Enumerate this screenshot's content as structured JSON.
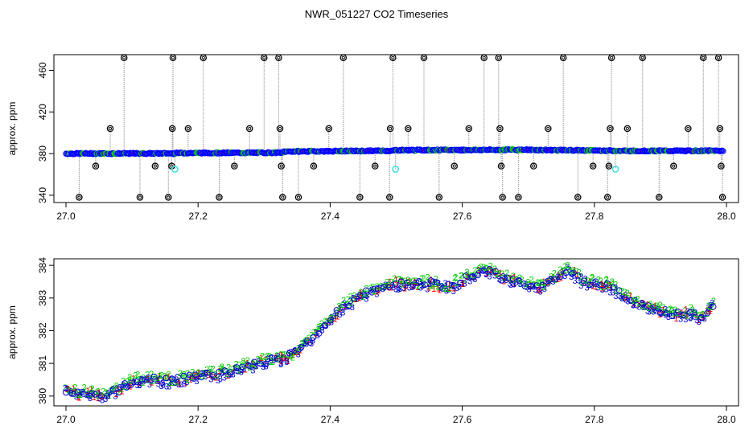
{
  "figure": {
    "title": "NWR_051227  CO2 Timeseries"
  },
  "colors": {
    "outlier": "#000000",
    "main_points": "#0000ff",
    "flag_cyan": "#40e0e0",
    "connector": "#999999",
    "series_1": "#ff0000",
    "series_2": "#00cc00",
    "series_3": "#0000cc"
  },
  "chart_data": [
    {
      "type": "scatter",
      "ylabel": "approx. ppm",
      "xlim": [
        27.0,
        28.0
      ],
      "ylim": [
        333,
        475
      ],
      "x_ticks": [
        27.0,
        27.2,
        27.4,
        27.6,
        27.8,
        28.0
      ],
      "x_tick_labels": [
        "27.0",
        "27.2",
        "27.4",
        "27.6",
        "27.8",
        "28.0"
      ],
      "y_ticks": [
        340,
        380,
        420,
        460
      ],
      "y_tick_labels": [
        "340",
        "380",
        "420",
        "460"
      ],
      "baseline_segments": [
        {
          "x": [
            27.0,
            27.165
          ],
          "y": [
            380.0,
            380.2
          ]
        },
        {
          "x": [
            27.165,
            27.33
          ],
          "y": [
            380.5,
            380.9
          ]
        },
        {
          "x": [
            27.33,
            27.497
          ],
          "y": [
            382.0,
            382.8
          ]
        },
        {
          "x": [
            27.497,
            27.664
          ],
          "y": [
            383.3,
            383.6
          ]
        },
        {
          "x": [
            27.664,
            27.831
          ],
          "y": [
            383.8,
            382.8
          ]
        },
        {
          "x": [
            27.831,
            27.995
          ],
          "y": [
            382.6,
            382.7
          ]
        }
      ],
      "outliers": [
        {
          "x": 27.02,
          "y": 338
        },
        {
          "x": 27.045,
          "y": 368
        },
        {
          "x": 27.067,
          "y": 404
        },
        {
          "x": 27.088,
          "y": 472
        },
        {
          "x": 27.112,
          "y": 338
        },
        {
          "x": 27.135,
          "y": 368
        },
        {
          "x": 27.155,
          "y": 338
        },
        {
          "x": 27.16,
          "y": 368
        },
        {
          "x": 27.161,
          "y": 404
        },
        {
          "x": 27.162,
          "y": 472
        },
        {
          "x": 27.185,
          "y": 404
        },
        {
          "x": 27.208,
          "y": 472
        },
        {
          "x": 27.232,
          "y": 338
        },
        {
          "x": 27.255,
          "y": 368
        },
        {
          "x": 27.278,
          "y": 404
        },
        {
          "x": 27.3,
          "y": 472
        },
        {
          "x": 27.322,
          "y": 472
        },
        {
          "x": 27.324,
          "y": 404
        },
        {
          "x": 27.326,
          "y": 368
        },
        {
          "x": 27.328,
          "y": 338
        },
        {
          "x": 27.352,
          "y": 338
        },
        {
          "x": 27.375,
          "y": 368
        },
        {
          "x": 27.398,
          "y": 404
        },
        {
          "x": 27.42,
          "y": 472
        },
        {
          "x": 27.445,
          "y": 338
        },
        {
          "x": 27.468,
          "y": 368
        },
        {
          "x": 27.49,
          "y": 338
        },
        {
          "x": 27.491,
          "y": 404
        },
        {
          "x": 27.495,
          "y": 472
        },
        {
          "x": 27.518,
          "y": 404
        },
        {
          "x": 27.542,
          "y": 472
        },
        {
          "x": 27.565,
          "y": 338
        },
        {
          "x": 27.588,
          "y": 368
        },
        {
          "x": 27.61,
          "y": 404
        },
        {
          "x": 27.633,
          "y": 472
        },
        {
          "x": 27.655,
          "y": 472
        },
        {
          "x": 27.657,
          "y": 404
        },
        {
          "x": 27.659,
          "y": 368
        },
        {
          "x": 27.661,
          "y": 338
        },
        {
          "x": 27.685,
          "y": 338
        },
        {
          "x": 27.708,
          "y": 368
        },
        {
          "x": 27.73,
          "y": 404
        },
        {
          "x": 27.753,
          "y": 472
        },
        {
          "x": 27.775,
          "y": 338
        },
        {
          "x": 27.798,
          "y": 368
        },
        {
          "x": 27.82,
          "y": 338
        },
        {
          "x": 27.822,
          "y": 368
        },
        {
          "x": 27.824,
          "y": 404
        },
        {
          "x": 27.826,
          "y": 472
        },
        {
          "x": 27.85,
          "y": 404
        },
        {
          "x": 27.873,
          "y": 472
        },
        {
          "x": 27.898,
          "y": 338
        },
        {
          "x": 27.92,
          "y": 368
        },
        {
          "x": 27.942,
          "y": 404
        },
        {
          "x": 27.965,
          "y": 472
        },
        {
          "x": 27.988,
          "y": 472
        },
        {
          "x": 27.99,
          "y": 404
        },
        {
          "x": 27.992,
          "y": 368
        },
        {
          "x": 27.994,
          "y": 338
        }
      ],
      "flagged_points": [
        {
          "x": 27.165,
          "y": 365
        },
        {
          "x": 27.499,
          "y": 365
        },
        {
          "x": 27.832,
          "y": 365
        }
      ]
    },
    {
      "type": "scatter",
      "ylabel": "approx. ppm",
      "xlim": [
        27.0,
        28.0
      ],
      "ylim": [
        379.7,
        384.2
      ],
      "x_ticks": [
        27.0,
        27.2,
        27.4,
        27.6,
        27.8,
        28.0
      ],
      "x_tick_labels": [
        "27.0",
        "27.2",
        "27.4",
        "27.6",
        "27.8",
        "28.0"
      ],
      "y_ticks": [
        380,
        381,
        382,
        383,
        384
      ],
      "y_tick_labels": [
        "380",
        "381",
        "382",
        "383",
        "384"
      ],
      "marker_labels": [
        "1",
        "2",
        "3"
      ],
      "series": [
        {
          "marker": "1",
          "color_key": "series_1"
        },
        {
          "marker": "2",
          "color_key": "series_2"
        },
        {
          "marker": "3",
          "color_key": "series_3"
        }
      ],
      "trend": {
        "x": [
          27.0,
          27.02,
          27.04,
          27.06,
          27.08,
          27.1,
          27.12,
          27.15,
          27.16,
          27.18,
          27.2,
          27.22,
          27.25,
          27.28,
          27.3,
          27.32,
          27.33,
          27.35,
          27.37,
          27.4,
          27.42,
          27.45,
          27.48,
          27.5,
          27.52,
          27.55,
          27.58,
          27.6,
          27.62,
          27.65,
          27.66,
          27.68,
          27.7,
          27.72,
          27.74,
          27.76,
          27.78,
          27.8,
          27.82,
          27.85,
          27.88,
          27.9,
          27.92,
          27.95,
          27.96,
          27.98
        ],
        "y": [
          380.2,
          380.1,
          380.1,
          380.05,
          380.2,
          380.45,
          380.5,
          380.5,
          380.45,
          380.55,
          380.6,
          380.65,
          380.75,
          380.95,
          381.05,
          381.15,
          381.1,
          381.4,
          381.75,
          382.35,
          382.75,
          383.1,
          383.35,
          383.45,
          383.4,
          383.45,
          383.35,
          383.55,
          383.75,
          383.85,
          383.6,
          383.55,
          383.4,
          383.35,
          383.6,
          383.9,
          383.55,
          383.45,
          383.4,
          383.0,
          382.75,
          382.6,
          382.5,
          382.55,
          382.4,
          382.8
        ]
      }
    }
  ]
}
